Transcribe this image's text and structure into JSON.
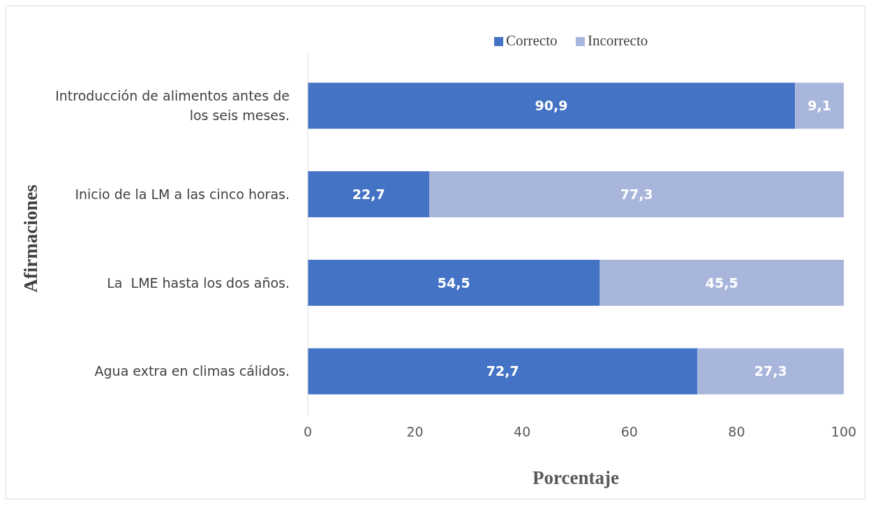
{
  "chart_data": {
    "type": "bar",
    "orientation": "horizontal",
    "stacked": true,
    "xlabel": "Porcentaje",
    "ylabel": "Afirmaciones",
    "categories": [
      "Introducción de alimentos antes de los seis meses.",
      "Inicio de la LM a las cinco horas.",
      "La  LME hasta los dos años.",
      "Agua extra en climas cálidos."
    ],
    "series": [
      {
        "name": "Correcto",
        "color": "#4472c4",
        "values": [
          90.9,
          22.7,
          54.5,
          72.7
        ],
        "value_labels": [
          "90,9",
          "22,7",
          "54,5",
          "72,7"
        ]
      },
      {
        "name": "Incorrecto",
        "color": "#a9b6dc",
        "values": [
          9.1,
          77.3,
          45.5,
          27.3
        ],
        "value_labels": [
          "9,1",
          "77,3",
          "45,5",
          "27,3"
        ]
      }
    ],
    "xlim": [
      0,
      100
    ],
    "xticks": [
      0,
      20,
      40,
      60,
      80,
      100
    ],
    "legend": "top",
    "grid": false
  }
}
